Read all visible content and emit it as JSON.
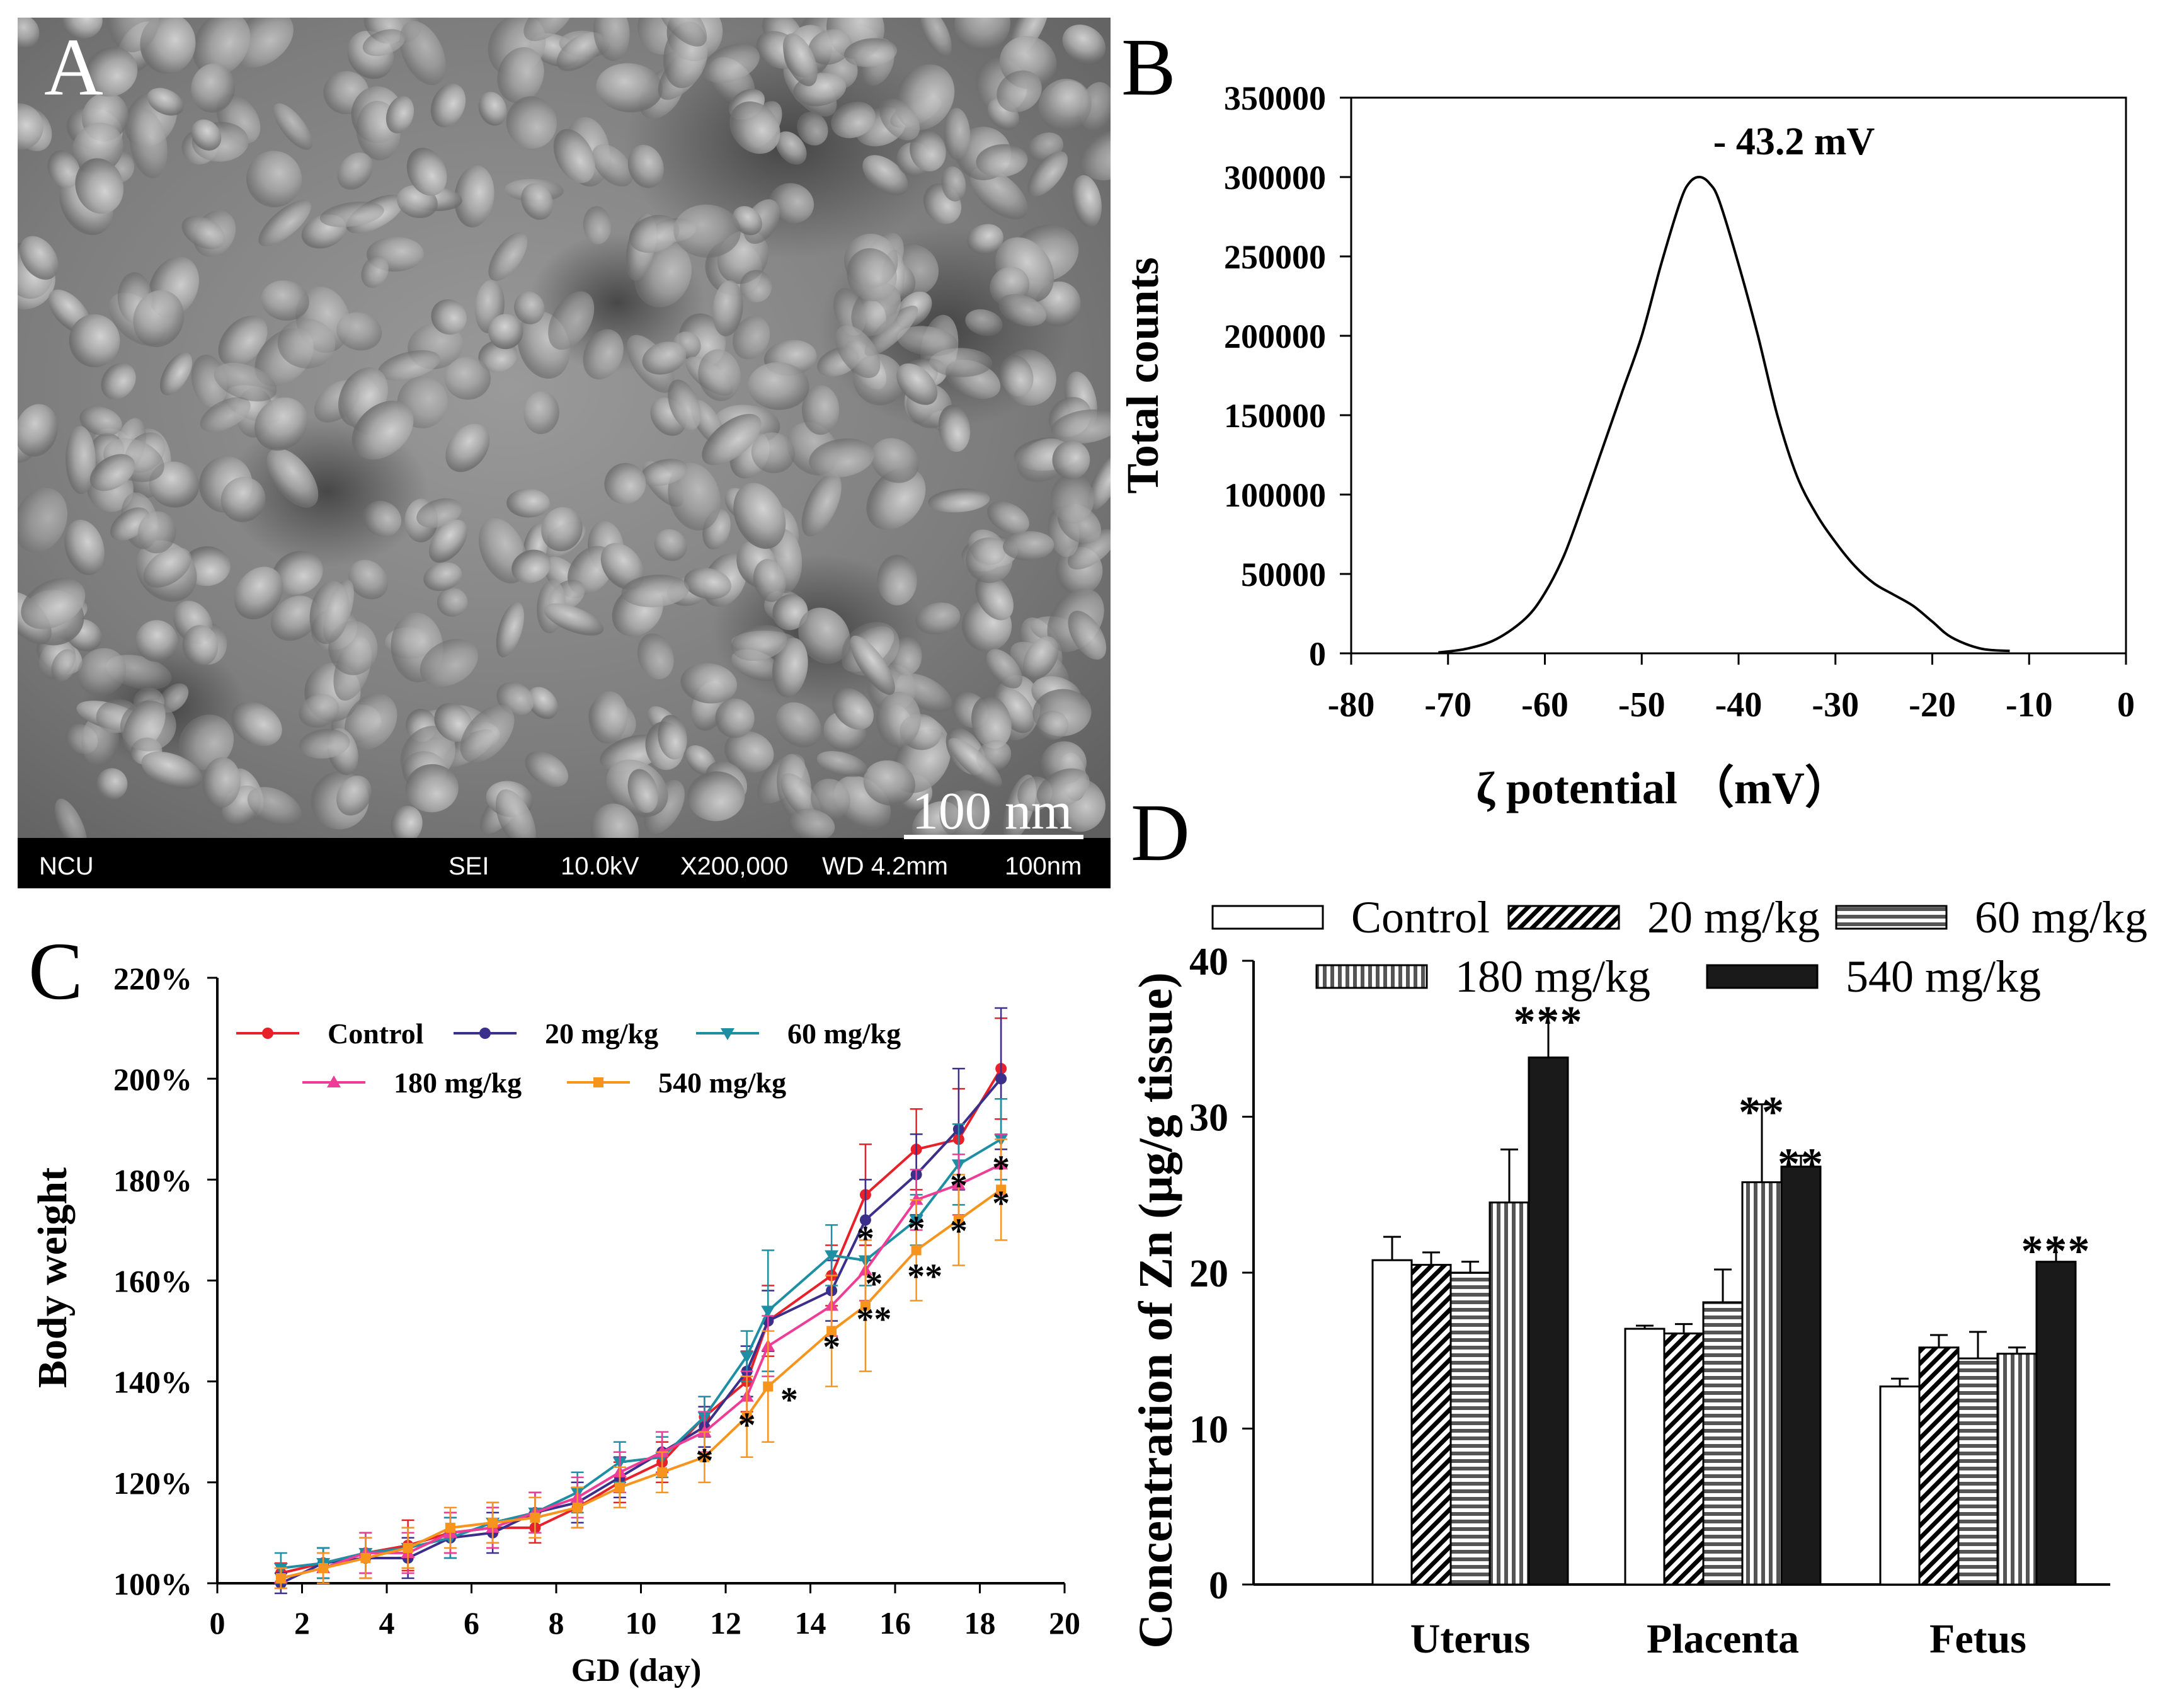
{
  "figure": {
    "panel_a": {
      "letter": "A",
      "scale_bar": "100 nm",
      "info_bar": {
        "lab": "NCU",
        "mode": "SEI",
        "voltage": "10.0kV",
        "magnification": "X200,000",
        "working_distance": "WD 4.2mm",
        "scale": "100nm"
      }
    },
    "panel_b": {
      "letter": "B",
      "peak_annotation": "- 43.2 mV"
    },
    "panel_c": {
      "letter": "C"
    },
    "panel_d": {
      "letter": "D"
    }
  },
  "chart_data": [
    {
      "id": "zeta",
      "type": "line",
      "title": "",
      "xlabel": "ζ   potential （mV）",
      "ylabel": "Total counts",
      "xlim": [
        -80,
        0
      ],
      "ylim": [
        0,
        350000
      ],
      "xticks": [
        -80,
        -70,
        -60,
        -50,
        -40,
        -30,
        -20,
        -10,
        0
      ],
      "xtick_labels": [
        "-80",
        "-70",
        "-60",
        "-50",
        "-40",
        "-30",
        "-20",
        "-10",
        "0"
      ],
      "yticks": [
        0,
        50000,
        100000,
        150000,
        200000,
        250000,
        300000,
        350000
      ],
      "ytick_labels": [
        "0",
        "50000",
        "100000",
        "150000",
        "200000",
        "250000",
        "300000",
        "350000"
      ],
      "series": [
        {
          "name": "zeta",
          "x": [
            -71,
            -68,
            -65,
            -62,
            -60,
            -58,
            -56,
            -54,
            -52,
            -50,
            -48,
            -46,
            -45,
            -44,
            -43,
            -42,
            -40,
            -38,
            -36,
            -34,
            -32,
            -30,
            -28,
            -26,
            -24,
            -22,
            -20,
            -18,
            -15,
            -12
          ],
          "y": [
            500,
            3000,
            9000,
            22000,
            38000,
            62000,
            95000,
            130000,
            165000,
            200000,
            245000,
            285000,
            297000,
            300000,
            296000,
            285000,
            245000,
            200000,
            150000,
            112000,
            88000,
            70000,
            55000,
            44000,
            37000,
            30000,
            20000,
            10000,
            3000,
            1500
          ]
        }
      ]
    },
    {
      "id": "weight",
      "type": "line",
      "title": "",
      "xlabel": "GD (day)",
      "ylabel": "Body weight",
      "xlim": [
        0,
        20
      ],
      "ylim": [
        100,
        220
      ],
      "xticks": [
        0,
        2,
        4,
        6,
        8,
        10,
        12,
        14,
        16,
        18,
        20
      ],
      "xtick_labels": [
        "0",
        "2",
        "4",
        "6",
        "8",
        "10",
        "12",
        "14",
        "16",
        "18",
        "20"
      ],
      "yticks": [
        100,
        120,
        140,
        160,
        180,
        200,
        220
      ],
      "ytick_labels": [
        "100%",
        "120%",
        "140%",
        "160%",
        "180%",
        "200%",
        "220%"
      ],
      "x": [
        1.5,
        2.5,
        3.5,
        4.5,
        5.5,
        6.5,
        7.5,
        8.5,
        9.5,
        10.5,
        11.5,
        12.5,
        13,
        14.5,
        15.3,
        16.5,
        17.5,
        18.5
      ],
      "series": [
        {
          "name": "Control",
          "color": "#e8202a",
          "marker": "circle",
          "values": [
            102,
            104,
            106,
            107.5,
            110,
            111,
            111,
            115,
            120,
            124,
            133,
            140,
            152,
            161,
            177,
            186,
            188,
            202
          ],
          "errors": [
            2,
            3,
            4,
            5,
            4,
            4,
            3,
            4,
            4,
            4,
            4,
            6,
            7,
            6,
            10,
            8,
            10,
            10
          ]
        },
        {
          "name": "20 mg/kg",
          "color": "#3b2f8c",
          "marker": "circle",
          "values": [
            100,
            104,
            105,
            105,
            109,
            110,
            114,
            116,
            121,
            126,
            131,
            142,
            152,
            158,
            172,
            181,
            190,
            200
          ],
          "errors": [
            2,
            3,
            4,
            4,
            4,
            4,
            4,
            4,
            4,
            4,
            4,
            5,
            6,
            6,
            8,
            8,
            12,
            14
          ]
        },
        {
          "name": "60 mg/kg",
          "color": "#1e8fa3",
          "marker": "triangle-down",
          "values": [
            103,
            104,
            106,
            107,
            109,
            112,
            114,
            118,
            124,
            125,
            133,
            145,
            154,
            165,
            164,
            172,
            183,
            188
          ],
          "errors": [
            3,
            3,
            4,
            4,
            4,
            4,
            4,
            4,
            4,
            4,
            4,
            5,
            12,
            6,
            5,
            5,
            8,
            8
          ]
        },
        {
          "name": "180 mg/kg",
          "color": "#ee3d96",
          "marker": "triangle-up",
          "values": [
            101,
            103,
            106,
            106,
            110,
            111,
            114,
            117,
            122,
            126,
            130,
            137,
            147,
            155,
            162,
            176,
            179,
            183
          ],
          "errors": [
            2,
            3,
            4,
            4,
            4,
            4,
            4,
            4,
            4,
            4,
            4,
            5,
            6,
            6,
            6,
            6,
            6,
            6
          ]
        },
        {
          "name": "540 mg/kg",
          "color": "#f7941d",
          "marker": "square",
          "values": [
            101,
            103,
            105,
            107,
            111,
            112,
            113,
            115,
            119,
            122,
            125,
            133,
            139,
            150,
            155,
            166,
            172,
            178
          ],
          "errors": [
            2,
            3,
            4,
            4,
            4,
            4,
            4,
            4,
            4,
            4,
            5,
            8,
            11,
            11,
            13,
            10,
            9,
            10
          ]
        }
      ],
      "annotations": [
        {
          "x": 11.5,
          "y": 125.5,
          "text": "*"
        },
        {
          "x": 12.5,
          "y": 132.5,
          "text": "*"
        },
        {
          "x": 13.5,
          "y": 137.5,
          "text": "*"
        },
        {
          "x": 14.5,
          "y": 148,
          "text": "*"
        },
        {
          "x": 15.5,
          "y": 153.5,
          "text": "**"
        },
        {
          "x": 15.3,
          "y": 169.5,
          "text": "*"
        },
        {
          "x": 15.5,
          "y": 160.5,
          "text": "*"
        },
        {
          "x": 16.5,
          "y": 171.5,
          "text": "*"
        },
        {
          "x": 16.7,
          "y": 162,
          "text": "**"
        },
        {
          "x": 17.5,
          "y": 180,
          "text": "*"
        },
        {
          "x": 17.5,
          "y": 171,
          "text": "*"
        },
        {
          "x": 18.5,
          "y": 183.5,
          "text": "*"
        },
        {
          "x": 18.5,
          "y": 176.5,
          "text": "*"
        }
      ]
    },
    {
      "id": "zinc",
      "type": "bar",
      "title": "",
      "xlabel": "",
      "ylabel": "Concentration of Zn (μg/g tissue)",
      "ylim": [
        0,
        40
      ],
      "yticks": [
        0,
        10,
        20,
        30,
        40
      ],
      "ytick_labels": [
        "0",
        "10",
        "20",
        "30",
        "40"
      ],
      "categories": [
        "Uterus",
        "Placenta",
        "Fetus"
      ],
      "series": [
        {
          "name": "Control",
          "pattern": "white",
          "values": [
            20.8,
            16.4,
            12.7
          ],
          "errors": [
            1.5,
            0.2,
            0.5
          ]
        },
        {
          "name": "20 mg/kg",
          "pattern": "diagonal",
          "values": [
            20.5,
            16.1,
            15.2
          ],
          "errors": [
            0.8,
            0.6,
            0.8
          ]
        },
        {
          "name": "60 mg/kg",
          "pattern": "horizontal",
          "values": [
            20.0,
            18.1,
            14.5
          ],
          "errors": [
            0.7,
            2.1,
            1.7
          ]
        },
        {
          "name": "180 mg/kg",
          "pattern": "vertical",
          "values": [
            24.5,
            25.8,
            14.8
          ],
          "errors": [
            3.4,
            5.0,
            0.4
          ]
        },
        {
          "name": "540 mg/kg",
          "pattern": "black",
          "values": [
            33.8,
            26.8,
            20.7
          ],
          "errors": [
            2.8,
            0.7,
            1.2
          ]
        }
      ],
      "annotations": [
        {
          "category": "Uterus",
          "series": "540 mg/kg",
          "text": "***"
        },
        {
          "category": "Placenta",
          "series": "180 mg/kg",
          "text": "**"
        },
        {
          "category": "Placenta",
          "series": "540 mg/kg",
          "text": "**"
        },
        {
          "category": "Fetus",
          "series": "540 mg/kg",
          "text": "***"
        }
      ]
    }
  ]
}
